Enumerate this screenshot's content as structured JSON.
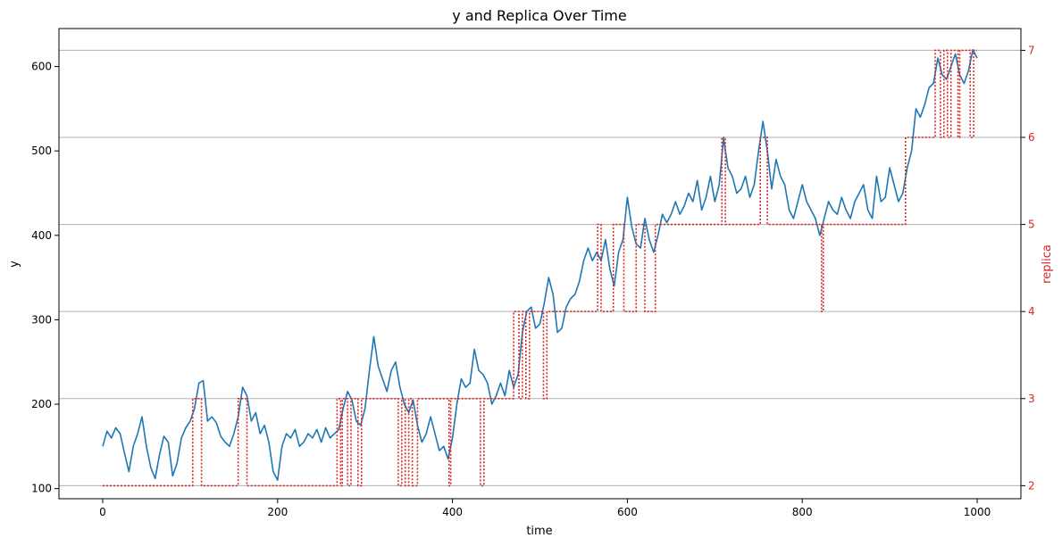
{
  "chart_data": {
    "type": "line",
    "title": "y and Replica Over Time",
    "xlabel": "time",
    "ylabel": "y",
    "y2label": "replica",
    "xlim": [
      -50,
      1050
    ],
    "ylim": [
      88,
      645
    ],
    "y2lim": [
      1.85,
      7.25
    ],
    "x_ticks": [
      0,
      200,
      400,
      600,
      800,
      1000
    ],
    "y_ticks": [
      100,
      200,
      300,
      400,
      500,
      600
    ],
    "y2_ticks": [
      2,
      3,
      4,
      5,
      6,
      7
    ],
    "grid": "horizontal on right axis",
    "legend": "none",
    "colors": {
      "y": "#1f77b4",
      "replica": "#d62728",
      "grid": "#b0b0b0"
    },
    "series": [
      {
        "name": "y",
        "axis": "left",
        "style": "solid",
        "x": [
          0,
          5,
          10,
          15,
          20,
          25,
          30,
          35,
          40,
          45,
          50,
          55,
          60,
          65,
          70,
          75,
          80,
          85,
          90,
          95,
          100,
          105,
          110,
          115,
          120,
          125,
          130,
          135,
          140,
          145,
          150,
          155,
          160,
          165,
          170,
          175,
          180,
          185,
          190,
          195,
          200,
          205,
          210,
          215,
          220,
          225,
          230,
          235,
          240,
          245,
          250,
          255,
          260,
          265,
          270,
          275,
          280,
          285,
          290,
          295,
          300,
          305,
          310,
          315,
          320,
          325,
          330,
          335,
          340,
          345,
          350,
          355,
          360,
          365,
          370,
          375,
          380,
          385,
          390,
          395,
          400,
          405,
          410,
          415,
          420,
          425,
          430,
          435,
          440,
          445,
          450,
          455,
          460,
          465,
          470,
          475,
          480,
          485,
          490,
          495,
          500,
          505,
          510,
          515,
          520,
          525,
          530,
          535,
          540,
          545,
          550,
          555,
          560,
          565,
          570,
          575,
          580,
          585,
          590,
          595,
          600,
          605,
          610,
          615,
          620,
          625,
          630,
          635,
          640,
          645,
          650,
          655,
          660,
          665,
          670,
          675,
          680,
          685,
          690,
          695,
          700,
          705,
          710,
          715,
          720,
          725,
          730,
          735,
          740,
          745,
          750,
          755,
          760,
          765,
          770,
          775,
          780,
          785,
          790,
          795,
          800,
          805,
          810,
          815,
          820,
          825,
          830,
          835,
          840,
          845,
          850,
          855,
          860,
          865,
          870,
          875,
          880,
          885,
          890,
          895,
          900,
          905,
          910,
          915,
          920,
          925,
          930,
          935,
          940,
          945,
          950,
          955,
          960,
          965,
          970,
          975,
          980,
          985,
          990,
          995,
          1000
        ],
        "y": [
          150,
          168,
          160,
          172,
          165,
          142,
          120,
          150,
          165,
          185,
          150,
          125,
          112,
          140,
          162,
          155,
          115,
          130,
          160,
          172,
          180,
          195,
          225,
          228,
          180,
          185,
          178,
          162,
          155,
          150,
          165,
          185,
          220,
          210,
          180,
          190,
          165,
          175,
          155,
          120,
          110,
          150,
          165,
          160,
          170,
          150,
          155,
          165,
          160,
          170,
          155,
          172,
          160,
          165,
          170,
          195,
          215,
          205,
          180,
          175,
          195,
          240,
          280,
          245,
          230,
          215,
          240,
          250,
          220,
          200,
          190,
          205,
          175,
          155,
          165,
          185,
          165,
          145,
          150,
          135,
          160,
          200,
          230,
          220,
          225,
          265,
          240,
          235,
          225,
          200,
          210,
          225,
          210,
          240,
          220,
          235,
          285,
          310,
          315,
          290,
          295,
          320,
          350,
          330,
          285,
          290,
          315,
          325,
          330,
          345,
          370,
          385,
          370,
          380,
          370,
          395,
          360,
          340,
          380,
          395,
          445,
          410,
          390,
          385,
          420,
          395,
          380,
          400,
          425,
          415,
          425,
          440,
          425,
          435,
          450,
          440,
          465,
          430,
          445,
          470,
          440,
          460,
          515,
          480,
          470,
          450,
          455,
          470,
          445,
          460,
          500,
          535,
          500,
          455,
          490,
          470,
          460,
          430,
          420,
          440,
          460,
          440,
          430,
          420,
          400,
          420,
          440,
          430,
          425,
          445,
          430,
          420,
          440,
          450,
          460,
          430,
          420,
          470,
          440,
          445,
          480,
          460,
          440,
          450,
          480,
          500,
          550,
          540,
          555,
          575,
          580,
          610,
          590,
          585,
          600,
          615,
          590,
          580,
          595,
          620,
          610
        ]
      },
      {
        "name": "replica",
        "axis": "right",
        "style": "dotted",
        "steps": [
          [
            0,
            2
          ],
          [
            103,
            3
          ],
          [
            113,
            2
          ],
          [
            155,
            3
          ],
          [
            165,
            2
          ],
          [
            268,
            3
          ],
          [
            272,
            2
          ],
          [
            274,
            3
          ],
          [
            280,
            2
          ],
          [
            284,
            3
          ],
          [
            292,
            2
          ],
          [
            296,
            3
          ],
          [
            338,
            2
          ],
          [
            342,
            3
          ],
          [
            346,
            2
          ],
          [
            350,
            3
          ],
          [
            354,
            2
          ],
          [
            360,
            3
          ],
          [
            396,
            2
          ],
          [
            398,
            3
          ],
          [
            432,
            2
          ],
          [
            436,
            3
          ],
          [
            470,
            4
          ],
          [
            476,
            3
          ],
          [
            480,
            4
          ],
          [
            484,
            3
          ],
          [
            488,
            4
          ],
          [
            504,
            3
          ],
          [
            508,
            4
          ],
          [
            566,
            5
          ],
          [
            570,
            4
          ],
          [
            584,
            5
          ],
          [
            596,
            4
          ],
          [
            610,
            5
          ],
          [
            620,
            4
          ],
          [
            632,
            5
          ],
          [
            708,
            6
          ],
          [
            712,
            5
          ],
          [
            752,
            6
          ],
          [
            760,
            5
          ],
          [
            822,
            4
          ],
          [
            824,
            5
          ],
          [
            918,
            6
          ],
          [
            952,
            7
          ],
          [
            958,
            6
          ],
          [
            962,
            7
          ],
          [
            966,
            6
          ],
          [
            970,
            7
          ],
          [
            978,
            6
          ],
          [
            980,
            7
          ],
          [
            992,
            6
          ],
          [
            996,
            7
          ],
          [
            1000,
            7
          ]
        ]
      }
    ]
  }
}
